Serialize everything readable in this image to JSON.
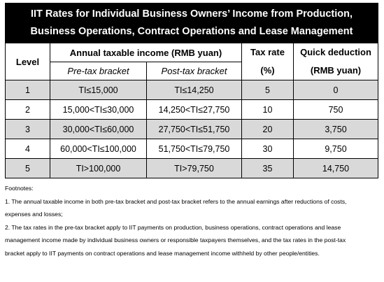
{
  "title": "IIT Rates for Individual Business Owners’ Income from Production, Business Operations, Contract Operations and Lease Management",
  "headers": {
    "level": "Level",
    "annual_income": "Annual taxable income (RMB yuan)",
    "pre_tax": "Pre-tax bracket",
    "post_tax": "Post-tax bracket",
    "tax_rate_1": "Tax rate",
    "tax_rate_2": "(%)",
    "quick_deduction_1": "Quick deduction",
    "quick_deduction_2": "(RMB yuan)"
  },
  "rows": [
    {
      "level": "1",
      "pre": "TI≤15,000",
      "post": "TI≤14,250",
      "rate": "5",
      "deduction": "0"
    },
    {
      "level": "2",
      "pre": "15,000<TI≤30,000",
      "post": "14,250<TI≤27,750",
      "rate": "10",
      "deduction": "750"
    },
    {
      "level": "3",
      "pre": "30,000<TI≤60,000",
      "post": "27,750<TI≤51,750",
      "rate": "20",
      "deduction": "3,750"
    },
    {
      "level": "4",
      "pre": "60,000<TI≤100,000",
      "post": "51,750<TI≤79,750",
      "rate": "30",
      "deduction": "9,750"
    },
    {
      "level": "5",
      "pre": "TI>100,000",
      "post": "TI>79,750",
      "rate": "35",
      "deduction": "14,750"
    }
  ],
  "footnotes": {
    "heading": "Footnotes:",
    "note1_line1": "1. The annual taxable income in both pre-tax bracket and post-tax bracket refers to the annual earnings after reductions of costs,",
    "note1_line2": "expenses and losses;",
    "note2_line1": "2. The tax rates in the pre-tax bracket apply to IIT payments on production, business operations, contract operations and lease",
    "note2_line2": "management income made by individual business owners or responsible taxpayers themselves, and the tax rates in the post-tax",
    "note2_line3": "bracket apply to IIT payments on contract operations and lease management income withheld by other people/entities."
  },
  "colors": {
    "title_bg": "#000000",
    "shaded_row": "#d9d9d9"
  }
}
